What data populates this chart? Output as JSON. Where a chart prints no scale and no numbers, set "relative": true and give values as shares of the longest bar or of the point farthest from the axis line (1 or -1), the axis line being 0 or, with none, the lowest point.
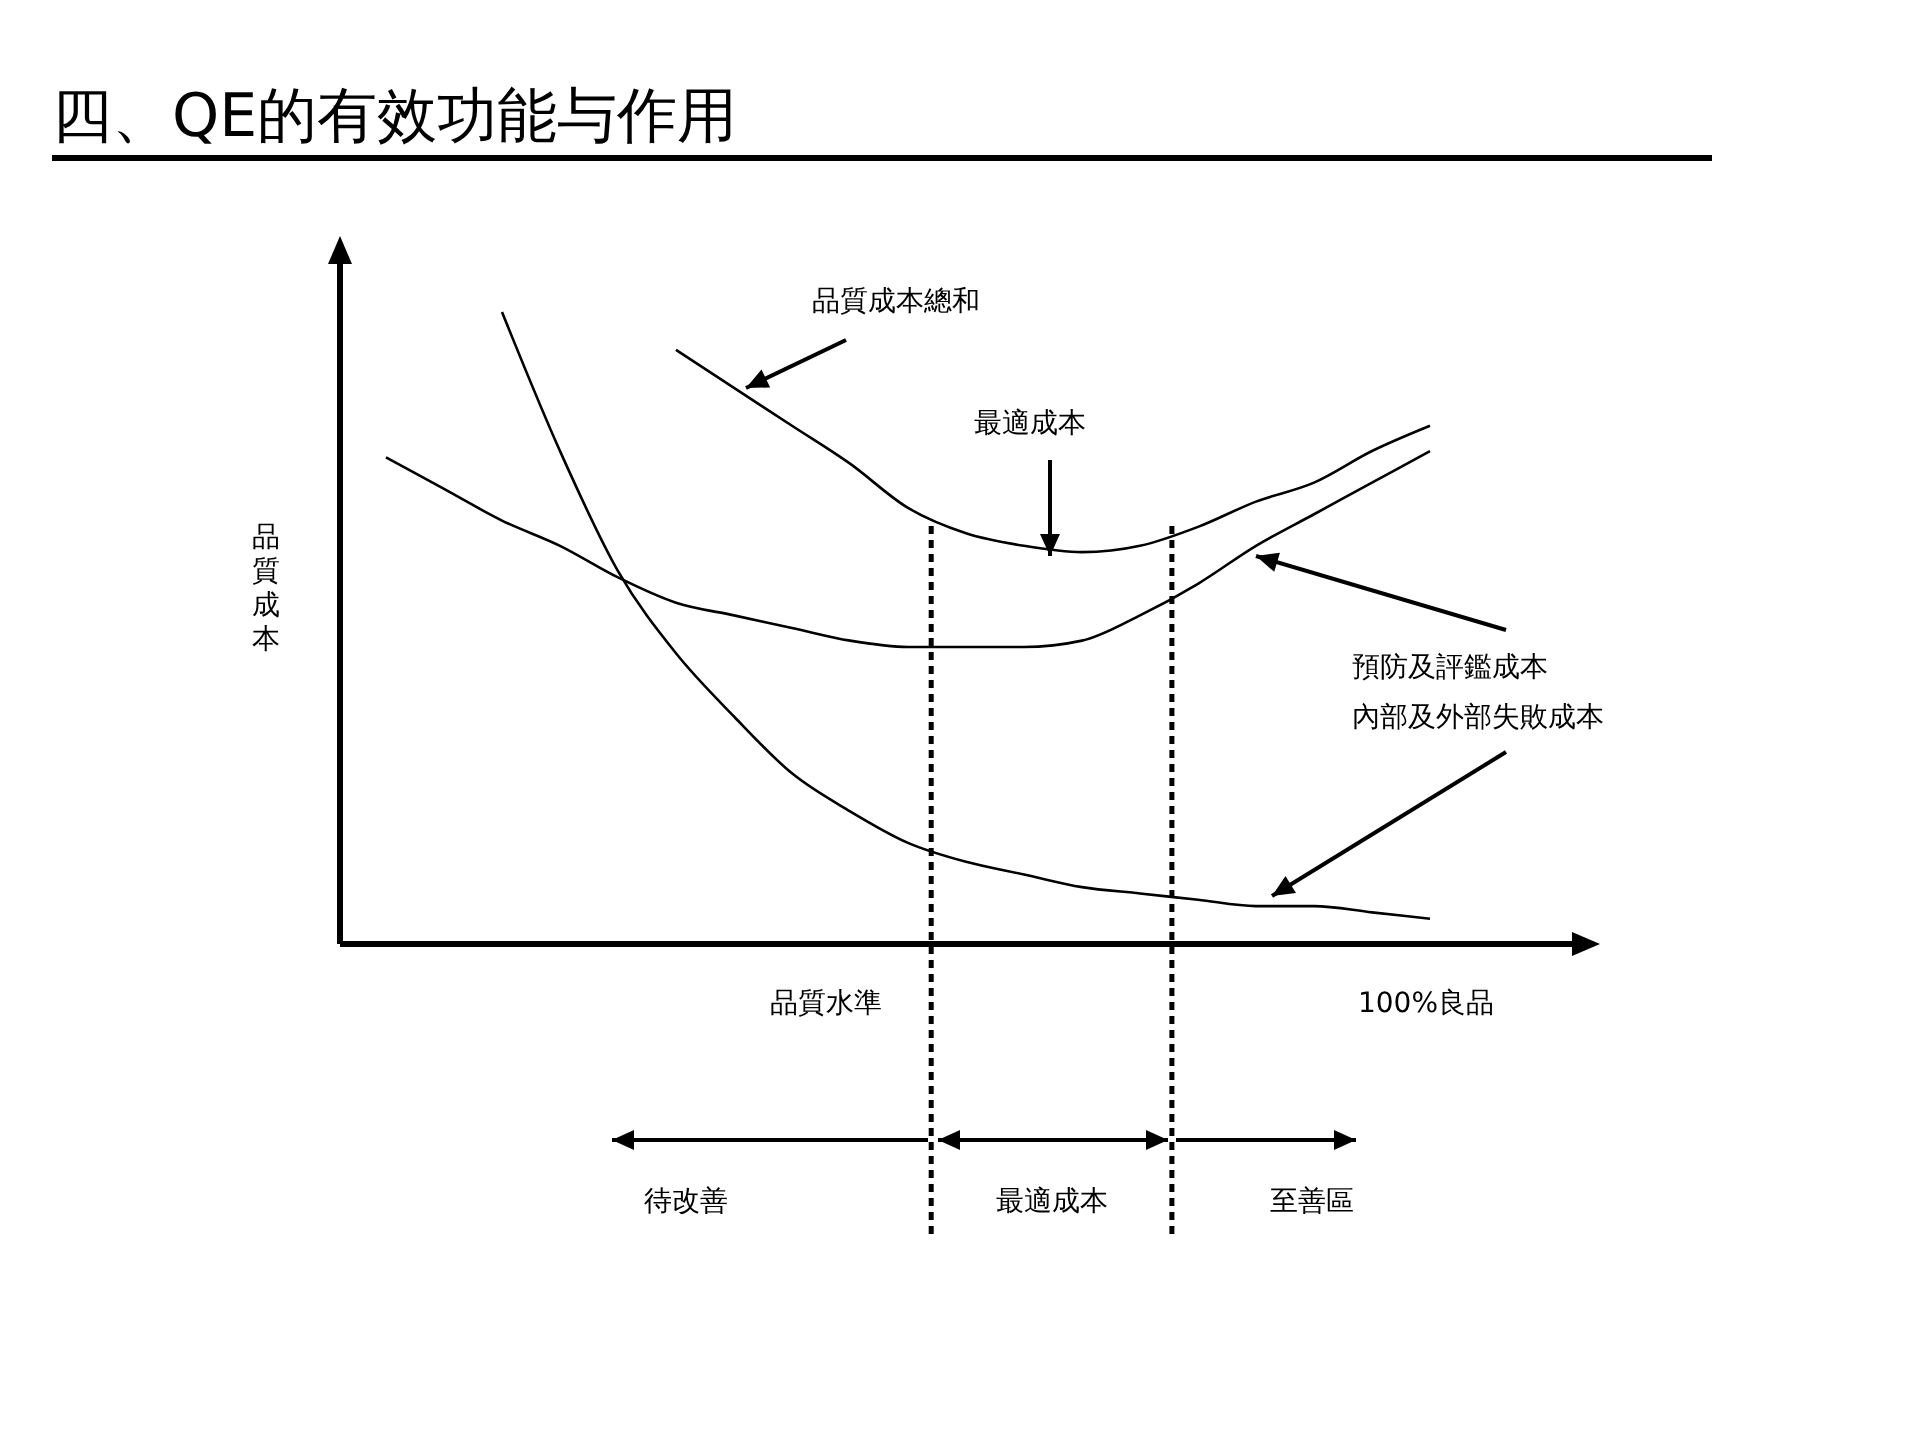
{
  "chart_data": {
    "type": "line",
    "relative": true,
    "title": "四、QE的有效功能与作用",
    "xlabel": "品質水準",
    "ylabel": "品質成本",
    "categories": [
      null,
      null,
      null,
      null,
      null,
      null,
      null,
      null,
      null,
      null,
      null,
      null,
      null,
      null,
      null,
      null,
      null,
      null,
      null
    ],
    "series": [
      {
        "name": "品質成本總和",
        "color": "#000000",
        "values": [
          null,
          null,
          null,
          null,
          null,
          0.94,
          0.88,
          0.82,
          0.76,
          0.69,
          0.65,
          0.63,
          0.62,
          0.63,
          0.66,
          0.7,
          0.73,
          0.78,
          0.82
        ]
      },
      {
        "name": "預防及評鑑成本",
        "color": "#000000",
        "values": [
          0.77,
          0.72,
          0.67,
          0.63,
          0.58,
          0.54,
          0.52,
          0.5,
          0.48,
          0.47,
          0.47,
          0.47,
          0.48,
          0.52,
          0.57,
          0.63,
          0.68,
          0.73,
          0.78
        ]
      },
      {
        "name": "內部及外部失敗成本",
        "color": "#000000",
        "values": [
          null,
          null,
          1,
          0.78,
          0.59,
          0.46,
          0.36,
          0.27,
          0.21,
          0.16,
          0.13,
          0.11,
          0.09,
          0.08,
          0.07,
          0.06,
          0.06,
          0.05,
          0.04
        ]
      }
    ],
    "annotations": [
      "最適成本",
      "100%良品",
      "待改善",
      "最適成本",
      "至善區"
    ],
    "legend": false,
    "marker": "none",
    "line_style": "solid"
  }
}
